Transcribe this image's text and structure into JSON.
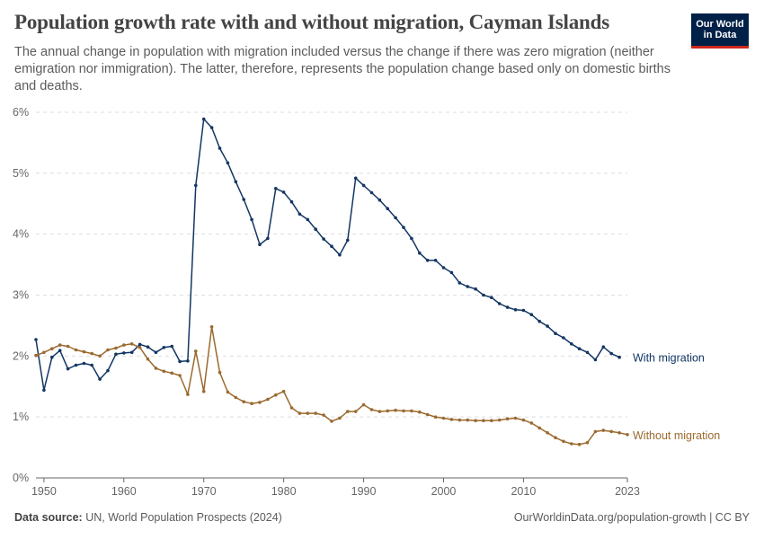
{
  "header": {
    "title": "Population growth rate with and without migration, Cayman Islands",
    "subtitle": "The annual change in population with migration included versus the change if there was zero migration (neither emigration nor immigration). The latter, therefore, represents the population change based only on domestic births and deaths."
  },
  "logo": {
    "line1": "Our World",
    "line2": "in Data"
  },
  "footer": {
    "source_label": "Data source:",
    "source_text": "UN, World Population Prospects (2024)",
    "url_text": "OurWorldinData.org/population-growth | CC BY"
  },
  "chart_data": {
    "type": "line",
    "x_ticks": [
      1950,
      1960,
      1970,
      1980,
      1990,
      2000,
      2010,
      2023
    ],
    "x_tick_labels": [
      "1950",
      "1960",
      "1970",
      "1980",
      "1990",
      "2000",
      "2010",
      "2023"
    ],
    "y_ticks": [
      0,
      1,
      2,
      3,
      4,
      5,
      6
    ],
    "y_tick_labels": [
      "0%",
      "1%",
      "2%",
      "3%",
      "4%",
      "5%",
      "6%"
    ],
    "xlim": [
      1949,
      2023
    ],
    "ylim": [
      0,
      6
    ],
    "grid": true,
    "colors": {
      "with": "#133663",
      "without": "#9a6a2f",
      "grid": "#dddddd",
      "axis": "#666666",
      "tick_text": "#666666"
    },
    "x": [
      1949,
      1950,
      1951,
      1952,
      1953,
      1954,
      1955,
      1956,
      1957,
      1958,
      1959,
      1960,
      1961,
      1962,
      1963,
      1964,
      1965,
      1966,
      1967,
      1968,
      1969,
      1970,
      1971,
      1972,
      1973,
      1974,
      1975,
      1976,
      1977,
      1978,
      1979,
      1980,
      1981,
      1982,
      1983,
      1984,
      1985,
      1986,
      1987,
      1988,
      1989,
      1990,
      1991,
      1992,
      1993,
      1994,
      1995,
      1996,
      1997,
      1998,
      1999,
      2000,
      2001,
      2002,
      2003,
      2004,
      2005,
      2006,
      2007,
      2008,
      2009,
      2010,
      2011,
      2012,
      2013,
      2014,
      2015,
      2016,
      2017,
      2018,
      2019,
      2020,
      2021,
      2022,
      2023
    ],
    "series": [
      {
        "name": "With migration",
        "values": [
          2.27,
          1.44,
          1.98,
          2.09,
          1.79,
          1.85,
          1.88,
          1.85,
          1.62,
          1.76,
          2.03,
          2.05,
          2.06,
          2.19,
          2.15,
          2.06,
          2.14,
          2.16,
          1.91,
          1.92,
          4.8,
          5.89,
          5.75,
          5.41,
          5.17,
          4.86,
          4.57,
          4.24,
          3.83,
          3.93,
          4.75,
          4.69,
          4.53,
          4.33,
          4.24,
          4.08,
          3.92,
          3.8,
          3.66,
          3.9,
          4.92,
          4.8,
          4.68,
          4.56,
          4.42,
          4.27,
          4.11,
          3.93,
          3.69,
          3.57,
          3.57,
          3.45,
          3.37,
          3.2,
          3.14,
          3.1,
          3.0,
          2.96,
          2.86,
          2.8,
          2.76,
          2.75,
          2.68,
          2.57,
          2.49,
          2.37,
          2.3,
          2.2,
          2.12,
          2.06,
          1.94,
          2.15,
          2.04,
          1.98,
          null
        ]
      },
      {
        "name": "Without migration",
        "values": [
          2.01,
          2.06,
          2.12,
          2.18,
          2.16,
          2.1,
          2.07,
          2.04,
          2.0,
          2.1,
          2.13,
          2.18,
          2.2,
          2.14,
          1.95,
          1.8,
          1.75,
          1.72,
          1.68,
          1.37,
          2.08,
          1.42,
          2.48,
          1.73,
          1.41,
          1.32,
          1.25,
          1.22,
          1.24,
          1.29,
          1.36,
          1.42,
          1.15,
          1.06,
          1.06,
          1.06,
          1.03,
          0.93,
          0.98,
          1.09,
          1.09,
          1.2,
          1.12,
          1.09,
          1.1,
          1.11,
          1.1,
          1.1,
          1.08,
          1.04,
          1.0,
          0.98,
          0.96,
          0.95,
          0.95,
          0.94,
          0.94,
          0.94,
          0.95,
          0.97,
          0.98,
          0.95,
          0.9,
          0.82,
          0.74,
          0.66,
          0.6,
          0.56,
          0.55,
          0.58,
          0.76,
          0.78,
          0.76,
          0.74,
          0.71
        ]
      }
    ]
  }
}
